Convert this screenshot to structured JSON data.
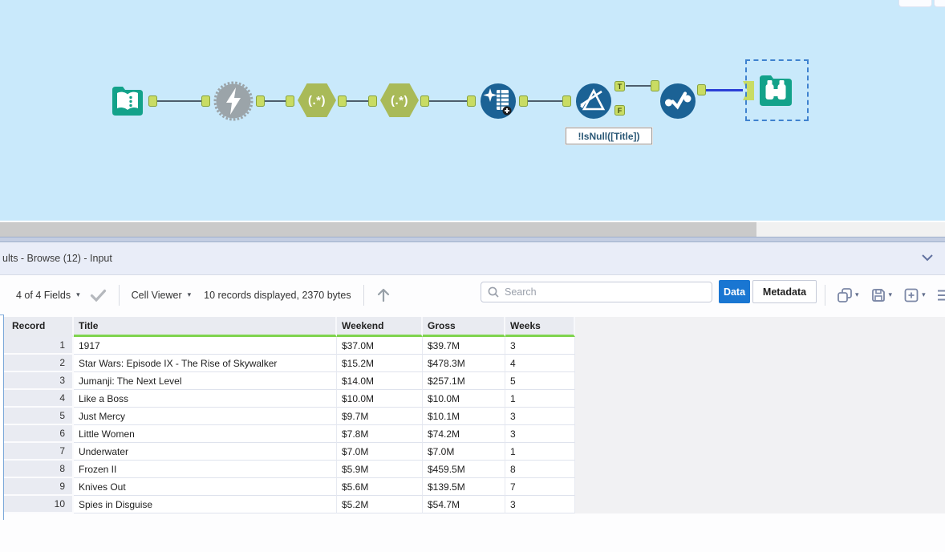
{
  "canvas": {
    "annotation": "!IsNull([Title])",
    "regex_label": "(.*)",
    "filter_true_label": "T",
    "filter_false_label": "F",
    "tools": [
      {
        "name": "input-data-tool",
        "icon": "book-icon",
        "color": "#13a28a"
      },
      {
        "name": "macro-tool",
        "icon": "lightning-icon",
        "color": "#9ba4a9"
      },
      {
        "name": "regex-tool-1",
        "icon": "regex-text",
        "color": "#a9ba58"
      },
      {
        "name": "regex-tool-2",
        "icon": "regex-text",
        "color": "#a9ba58"
      },
      {
        "name": "data-cleansing-tool",
        "icon": "sparkle-table-icon",
        "color": "#1b6295"
      },
      {
        "name": "filter-tool",
        "icon": "funnel-icon",
        "color": "#1b6295"
      },
      {
        "name": "unique-tool",
        "icon": "check-dots-icon",
        "color": "#1b6295"
      },
      {
        "name": "browse-tool",
        "icon": "binoculars-icon",
        "color": "#13a28a",
        "selected": true
      }
    ]
  },
  "results_panel": {
    "title": "ults - Browse (12) - Input",
    "toolbar": {
      "fields_selector_label": "4 of 4 Fields",
      "cell_viewer_label": "Cell Viewer",
      "records_summary": "10 records displayed, 2370 bytes",
      "search_placeholder": "Search",
      "data_tab_label": "Data",
      "metadata_tab_label": "Metadata"
    },
    "table": {
      "columns": [
        "Record",
        "Title",
        "Weekend",
        "Gross",
        "Weeks"
      ],
      "rows": [
        [
          "1",
          "1917",
          "$37.0M",
          "$39.7M",
          "3"
        ],
        [
          "2",
          "Star Wars: Episode IX - The Rise of Skywalker",
          "$15.2M",
          "$478.3M",
          "4"
        ],
        [
          "3",
          "Jumanji: The Next Level",
          "$14.0M",
          "$257.1M",
          "5"
        ],
        [
          "4",
          "Like a Boss",
          "$10.0M",
          "$10.0M",
          "1"
        ],
        [
          "5",
          "Just Mercy",
          "$9.7M",
          "$10.1M",
          "3"
        ],
        [
          "6",
          "Little Women",
          "$7.8M",
          "$74.2M",
          "3"
        ],
        [
          "7",
          "Underwater",
          "$7.0M",
          "$7.0M",
          "1"
        ],
        [
          "8",
          "Frozen II",
          "$5.9M",
          "$459.5M",
          "8"
        ],
        [
          "9",
          "Knives Out",
          "$5.6M",
          "$139.5M",
          "7"
        ],
        [
          "10",
          "Spies in Disguise",
          "$5.2M",
          "$54.7M",
          "3"
        ]
      ]
    }
  },
  "colors": {
    "canvas_background": "#c9e9fb",
    "tool_blue": "#1b6295",
    "tool_teal": "#13a28a",
    "tool_olive": "#a9ba58",
    "anchor_green": "#c9dc63",
    "selected_wire_blue": "#2b3fd6",
    "data_button_blue": "#1976d2",
    "header_underline_green": "#7fd44e"
  }
}
